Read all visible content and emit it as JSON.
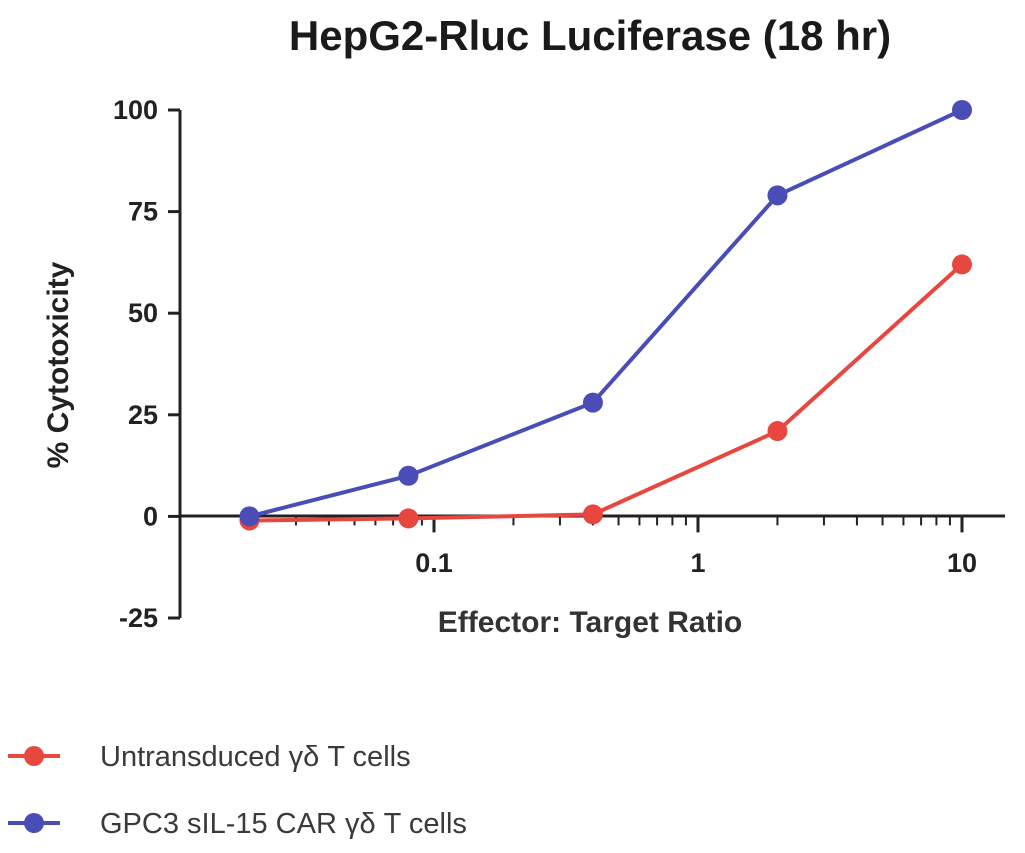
{
  "chart_data": {
    "type": "line",
    "title": "HepG2-Rluc Luciferase (18 hr)",
    "xlabel": "Effector: Target Ratio",
    "ylabel": "% Cytotoxicity",
    "x_scale": "log",
    "xlim": [
      0.02,
      13
    ],
    "ylim": [
      -25,
      100
    ],
    "x_tick_labels": [
      "0.1",
      "1",
      "10"
    ],
    "y_tick_labels": [
      "-25",
      "0",
      "25",
      "50",
      "75",
      "100"
    ],
    "grid": false,
    "legend_position": "bottom",
    "series": [
      {
        "name": "Untransduced γδ T cells",
        "color": "#e8473f",
        "x": [
          0.02,
          0.08,
          0.4,
          2,
          10
        ],
        "y": [
          -1,
          -0.5,
          0.5,
          21,
          62
        ]
      },
      {
        "name": "GPC3 sIL-15 CAR γδ T cells",
        "color": "#4a4db5",
        "x": [
          0.02,
          0.08,
          0.4,
          2,
          10
        ],
        "y": [
          0,
          10,
          28,
          79,
          100
        ]
      }
    ]
  }
}
